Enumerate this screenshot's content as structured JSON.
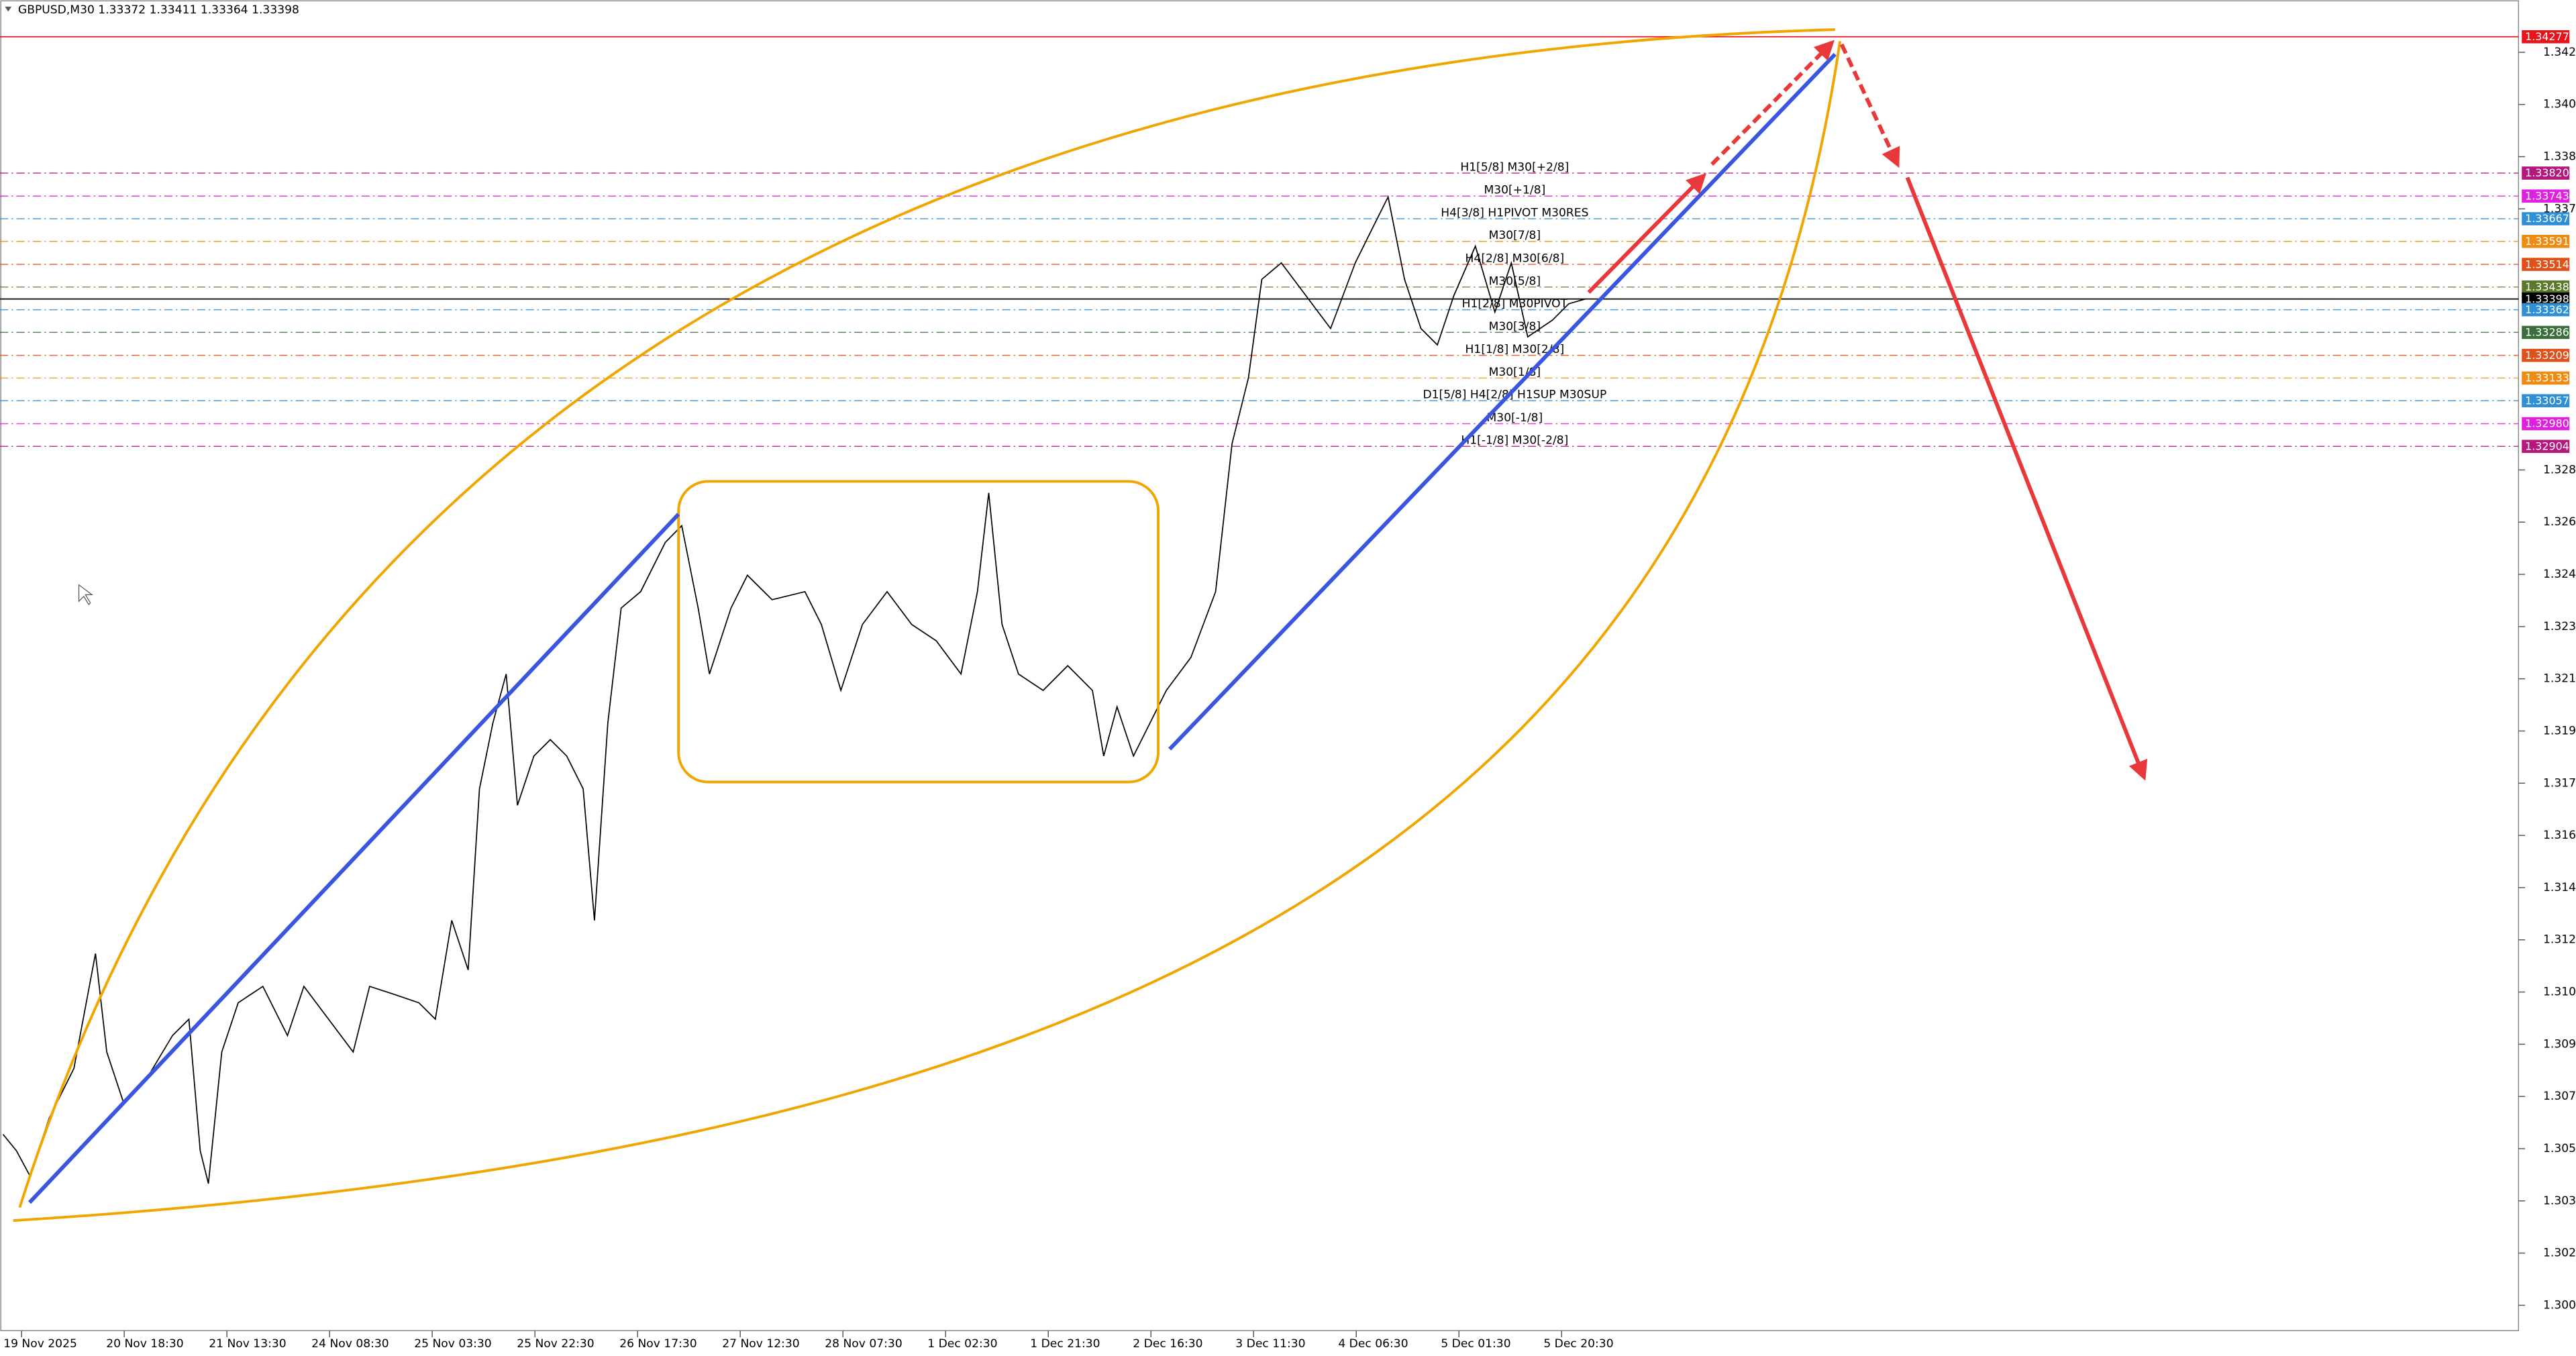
{
  "chart_data": {
    "type": "line",
    "title": "GBPUSD,M30  1.33372 1.33411 1.33364 1.33398",
    "color": "#000000",
    "x": [
      -0.18,
      -0.05,
      0.08,
      0.27,
      0.51,
      0.72,
      0.83,
      0.99,
      1.23,
      1.47,
      1.63,
      1.74,
      1.82,
      1.95,
      2.11,
      2.35,
      2.59,
      2.75,
      2.99,
      3.23,
      3.39,
      3.63,
      3.87,
      4.03,
      4.19,
      4.35,
      4.46,
      4.59,
      4.72,
      4.83,
      4.99,
      5.15,
      5.31,
      5.47,
      5.58,
      5.71,
      5.84,
      6.03,
      6.27,
      6.43,
      6.59,
      6.7,
      6.91,
      7.07,
      7.31,
      7.63,
      7.79,
      7.98,
      8.19,
      8.43,
      8.67,
      8.91,
      9.15,
      9.31,
      9.42,
      9.55,
      9.71,
      9.95,
      10.19,
      10.43,
      10.54,
      10.67,
      10.83,
      10.99,
      11.15,
      11.39,
      11.63,
      11.79,
      11.95,
      12.08,
      12.27,
      12.51,
      12.75,
      12.99,
      13.15,
      13.31,
      13.47,
      13.63,
      13.79,
      13.95,
      14.16,
      14.35,
      14.51,
      14.67,
      14.91,
      15.07,
      15.23
    ],
    "values": [
      1.30598,
      1.30543,
      1.3046,
      1.30653,
      1.30819,
      1.31204,
      1.30874,
      1.30708,
      1.30791,
      1.30929,
      1.30984,
      1.30543,
      1.30433,
      1.30874,
      1.31039,
      1.31094,
      1.30929,
      1.31094,
      1.30984,
      1.30874,
      1.31094,
      1.31067,
      1.31039,
      1.30984,
      1.31315,
      1.31149,
      1.31756,
      1.31976,
      1.32141,
      1.31701,
      1.31866,
      1.31921,
      1.31866,
      1.31756,
      1.31315,
      1.31976,
      1.32362,
      1.32417,
      1.32582,
      1.32638,
      1.32362,
      1.32141,
      1.32362,
      1.32472,
      1.3239,
      1.32417,
      1.32307,
      1.32086,
      1.32307,
      1.32417,
      1.32307,
      1.32252,
      1.32141,
      1.32417,
      1.32748,
      1.32307,
      1.32141,
      1.32086,
      1.32169,
      1.32086,
      1.31866,
      1.32031,
      1.31866,
      1.31976,
      1.32086,
      1.32197,
      1.32417,
      1.32913,
      1.33134,
      1.33464,
      1.33519,
      1.33409,
      1.33299,
      1.33519,
      1.3363,
      1.3374,
      1.33464,
      1.33299,
      1.33244,
      1.33409,
      1.33575,
      1.33354,
      1.33519,
      1.33271,
      1.33327,
      1.33382,
      1.33398
    ],
    "xlim": [
      -0.21,
      24.32
    ],
    "xticks": [
      {
        "value": 0,
        "label": "19 Nov 2025"
      },
      {
        "value": 1,
        "label": "20 Nov 18:30"
      },
      {
        "value": 2,
        "label": "21 Nov 13:30"
      },
      {
        "value": 3,
        "label": "24 Nov 08:30"
      },
      {
        "value": 4,
        "label": "25 Nov 03:30"
      },
      {
        "value": 5,
        "label": "25 Nov 22:30"
      },
      {
        "value": 6,
        "label": "26 Nov 17:30"
      },
      {
        "value": 7,
        "label": "27 Nov 12:30"
      },
      {
        "value": 8,
        "label": "28 Nov 07:30"
      },
      {
        "value": 9,
        "label": "1 Dec 02:30"
      },
      {
        "value": 10,
        "label": "1 Dec 21:30"
      },
      {
        "value": 11,
        "label": "2 Dec 16:30"
      },
      {
        "value": 12,
        "label": "3 Dec 11:30"
      },
      {
        "value": 13,
        "label": "4 Dec 06:30"
      },
      {
        "value": 14,
        "label": "5 Dec 01:30"
      },
      {
        "value": 15,
        "label": "5 Dec 20:30"
      }
    ],
    "ylim": [
      1.2994,
      1.344
    ],
    "yticks": [
      1.30025,
      {
        "value": 1.302,
        "label": "1.30200"
      },
      1.30375,
      {
        "value": 1.3055,
        "label": "1.30550"
      },
      1.30725,
      {
        "value": 1.309,
        "label": "1.30900"
      },
      1.31075,
      {
        "value": 1.3125,
        "label": "1.31250"
      },
      1.31425,
      {
        "value": 1.316,
        "label": "1.31600"
      },
      1.31775,
      {
        "value": 1.3195,
        "label": "1.31950"
      },
      1.32125,
      {
        "value": 1.323,
        "label": "1.32300"
      },
      1.32475,
      {
        "value": 1.3265,
        "label": "1.32650"
      },
      1.32825,
      {
        "value": 1.337,
        "label": "1.33700"
      },
      1.33875,
      {
        "value": 1.3405,
        "label": "1.34050"
      },
      1.34225
    ],
    "levels": [
      {
        "price": 1.34277,
        "color": "#e8141b"
      },
      {
        "price": 1.3382,
        "price_label": "1.33820",
        "text": "H1[5/8] M30[+2/8]",
        "color": "#b5177d"
      },
      {
        "price": 1.33743,
        "text": "M30[+1/8]",
        "color": "#e020e0"
      },
      {
        "price": 1.33667,
        "text": "H4[3/8] H1PIVOT M30RES",
        "color": "#2d8fd6"
      },
      {
        "price": 1.33591,
        "text": "M30[7/8]",
        "color": "#f08a10"
      },
      {
        "price": 1.33514,
        "text": "H4[2/8] M30[6/8]",
        "color": "#e0501a"
      },
      {
        "price": 1.33438,
        "text": "M30[5/8]",
        "color": "#5a7a2a"
      },
      {
        "price": 1.33398,
        "color": "#000000"
      },
      {
        "price": 1.33362,
        "text": "H1[2/8] M30PIVOT",
        "color": "#2d8fd6"
      },
      {
        "price": 1.33286,
        "text": "M30[3/8]",
        "color": "#3a6e3a"
      },
      {
        "price": 1.33209,
        "text": "H1[1/8] M30[2/8]",
        "color": "#e0501a"
      },
      {
        "price": 1.33133,
        "text": "M30[1/8]",
        "color": "#f08a10"
      },
      {
        "price": 1.33057,
        "text": "D1[5/8] H4[2/8] H1SUP M30SUP",
        "color": "#2d8fd6"
      },
      {
        "price": 1.3298,
        "price_label": "1.32980",
        "text": "M30[-1/8]",
        "color": "#e020e0"
      },
      {
        "price": 1.32904,
        "text": "H1[-1/8] M30[-2/8]",
        "color": "#b5177d"
      }
    ]
  }
}
